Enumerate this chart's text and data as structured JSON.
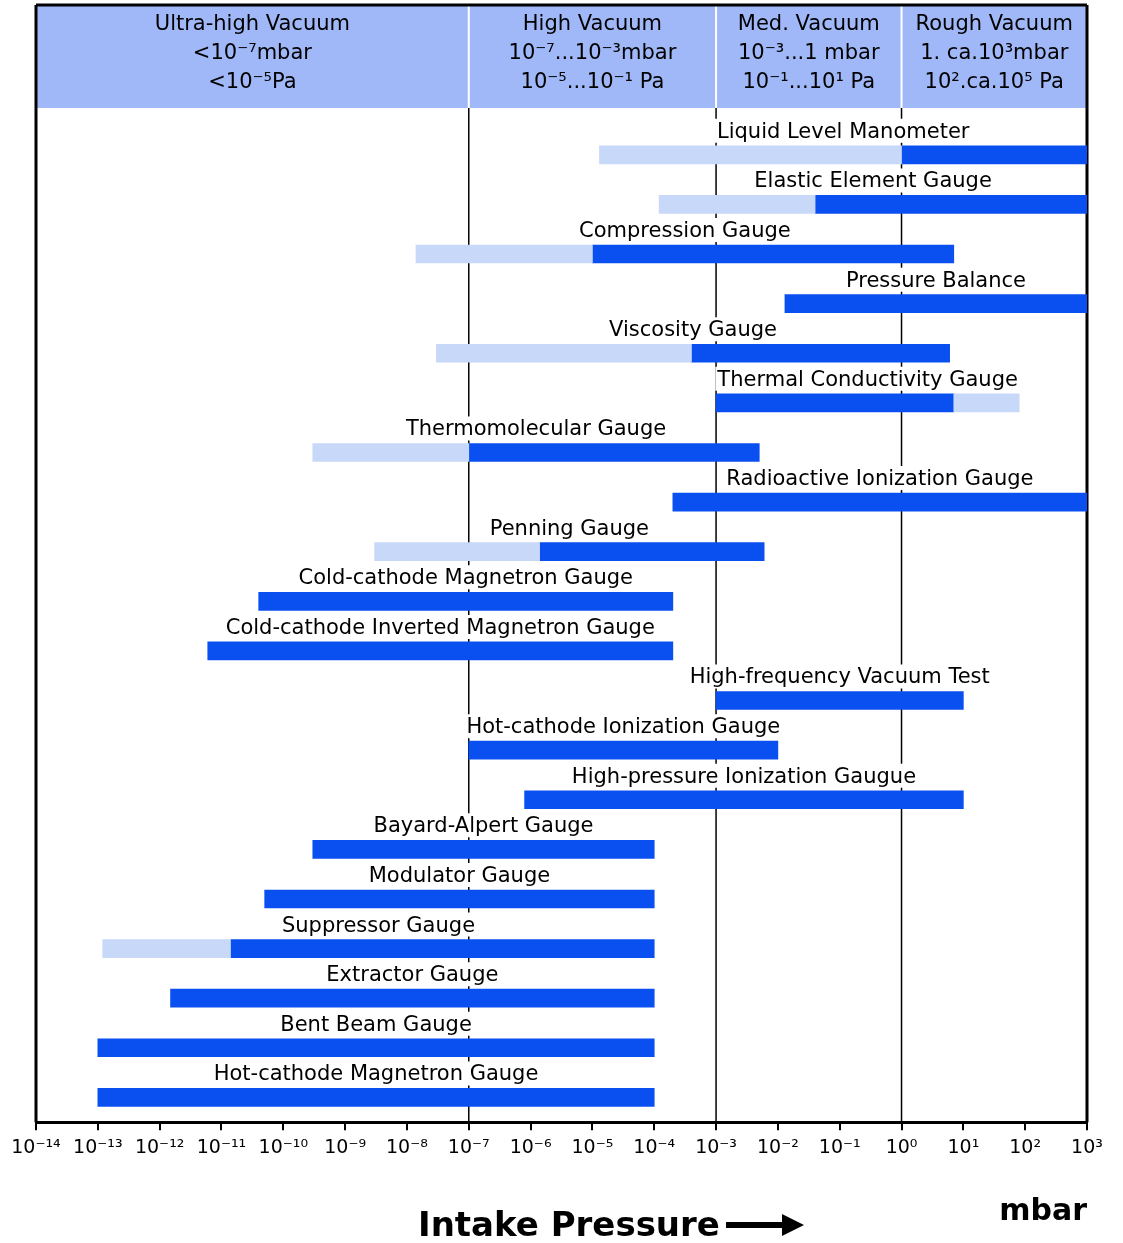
{
  "chart_data": {
    "type": "bar",
    "orientation": "horizontal",
    "log": "x",
    "categories": [
      "Liquid Level Manometer",
      "Elastic Element Gauge",
      "Compression Gauge",
      "Pressure Balance",
      "Viscosity Gauge",
      "Thermal Conductivity Gauge",
      "Thermomolecular Gauge",
      "Radioactive Ionization Gauge",
      "Penning Gauge",
      "Cold-cathode Magnetron Gauge",
      "Cold-cathode Inverted Magnetron Gauge",
      "High-frequency Vacuum Test",
      "Hot-cathode Ionization Gauge",
      "High-pressure Ionization Gaugue",
      "Bayard-Alpert Gauge",
      "Modulator Gauge",
      "Suppressor Gauge",
      "Extractor Gauge",
      "Bent Beam Gauge",
      "Hot-cathode Magnetron Gauge"
    ],
    "series": [
      {
        "color": "#c8d8f8",
        "base": [
          1.3e-05,
          0.00012,
          1.4e-08,
          null,
          3e-08,
          7,
          3e-10,
          null,
          3e-09,
          null,
          null,
          null,
          null,
          null,
          null,
          null,
          1.2e-13,
          null,
          null,
          null
        ],
        "values": [
          0.999987,
          0.03988,
          9.986e-06,
          null,
          0.00039997,
          73,
          9.97e-08,
          null,
          1.397e-06,
          null,
          null,
          null,
          null,
          null,
          null,
          null,
          1.388e-11,
          null,
          null,
          null
        ]
      },
      {
        "color": "#0a50f0",
        "base": [
          1,
          0.04,
          1e-05,
          0.013,
          0.0004,
          0.001,
          1e-07,
          0.0002,
          1.4e-06,
          4e-11,
          6e-12,
          0.001,
          1e-07,
          8e-07,
          3e-10,
          5e-11,
          1.4e-11,
          1.5e-12,
          1e-13,
          1e-13
        ],
        "values": [
          999,
          999.96,
          6.99999,
          999.987,
          5.9996,
          6.999,
          0.0049999,
          999.9998,
          0.0059986,
          0.00019999996,
          0.000199999994,
          9.999,
          0.0099999,
          9.9999992,
          9.99997e-05,
          9.99995e-05,
          9.9999986e-05,
          9.9999985e-05,
          9.9999999e-05,
          9.9999999e-05
        ]
      }
    ],
    "xlim": [
      1e-14,
      1000
    ],
    "xticks": [
      {
        "value": 1e-14,
        "label": "10⁻¹⁴"
      },
      {
        "value": 1e-13,
        "label": "10⁻¹³"
      },
      {
        "value": 1e-12,
        "label": "10⁻¹²"
      },
      {
        "value": 1e-11,
        "label": "10⁻¹¹"
      },
      {
        "value": 1e-10,
        "label": "10⁻¹⁰"
      },
      {
        "value": 1e-09,
        "label": "10⁻⁹"
      },
      {
        "value": 1e-08,
        "label": "10⁻⁸"
      },
      {
        "value": 1e-07,
        "label": "10⁻⁷"
      },
      {
        "value": 1e-06,
        "label": "10⁻⁶"
      },
      {
        "value": 1e-05,
        "label": "10⁻⁵"
      },
      {
        "value": 0.0001,
        "label": "10⁻⁴"
      },
      {
        "value": 0.001,
        "label": "10⁻³"
      },
      {
        "value": 0.01,
        "label": "10⁻²"
      },
      {
        "value": 0.1,
        "label": "10⁻¹"
      },
      {
        "value": 1,
        "label": "10⁰"
      },
      {
        "value": 10,
        "label": "10¹"
      },
      {
        "value": 100,
        "label": "10²"
      },
      {
        "value": 1000,
        "label": "10³"
      }
    ],
    "ref_lines": [
      {
        "axis": "x",
        "value": 1e-07
      },
      {
        "axis": "x",
        "value": 0.001
      },
      {
        "axis": "x",
        "value": 1
      }
    ],
    "xlabel": "Intake Pressure",
    "annotations": [
      "Ultra-high Vacuum\n<10⁻⁷mbar\n<10⁻⁵Pa",
      "High Vacuum\n10⁻⁷...10⁻³mbar\n10⁻⁵...10⁻¹ Pa",
      "Med. Vacuum\n10⁻³...1 mbar\n10⁻¹...10¹ Pa",
      "Rough Vacuum\n1. ca.10³mbar\n10².ca.10⁵ Pa",
      "mbar"
    ],
    "tick_labels": "x",
    "grid": false,
    "legend": false
  }
}
